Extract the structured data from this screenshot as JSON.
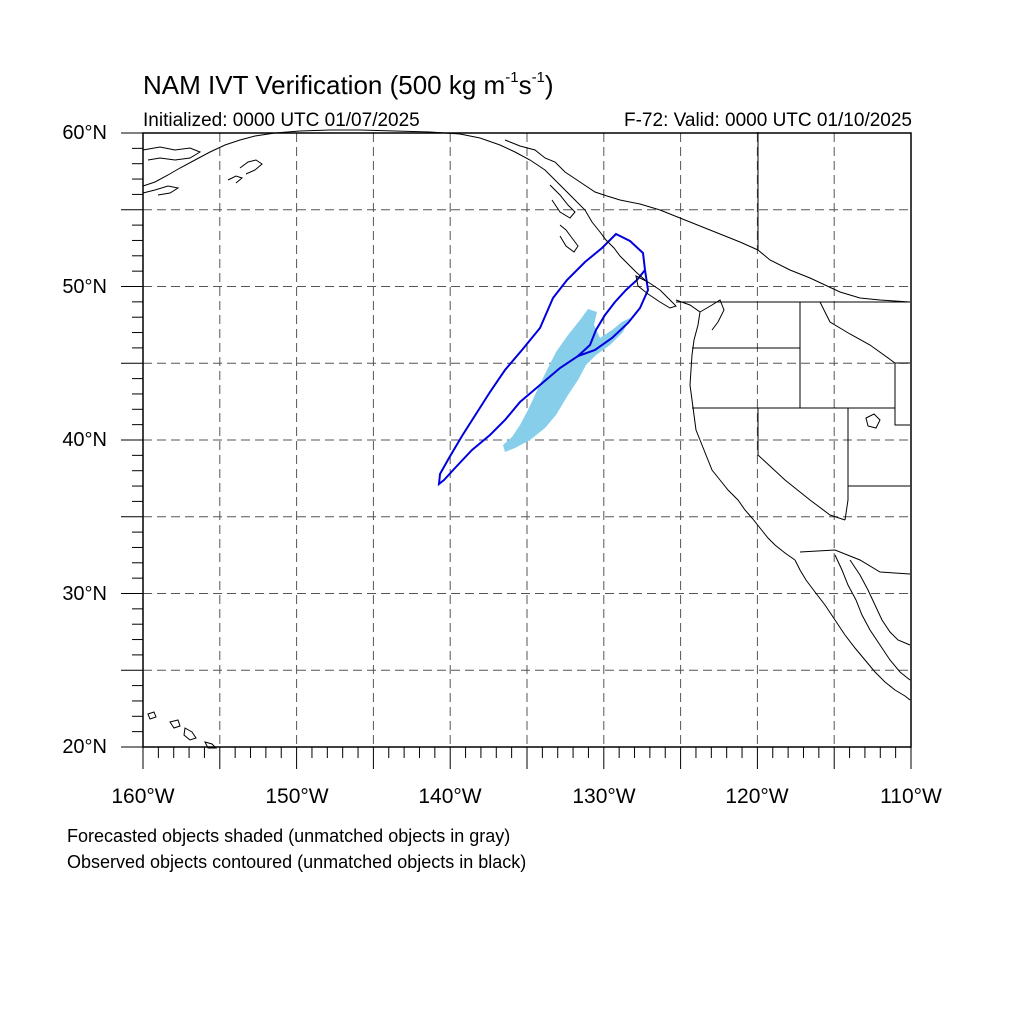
{
  "title": {
    "main": "NAM IVT Verification (500 kg m",
    "sup1": "-1",
    "mid": "s",
    "sup2": "-1",
    "close": ")"
  },
  "initialized": "Initialized: 0000 UTC 01/07/2025",
  "valid": "F-72: Valid: 0000 UTC 01/10/2025",
  "lat_labels": [
    "60°N",
    "50°N",
    "40°N",
    "30°N",
    "20°N"
  ],
  "lon_labels": [
    "160°W",
    "150°W",
    "140°W",
    "130°W",
    "120°W",
    "110°W"
  ],
  "notes": [
    "Forecasted objects shaded (unmatched objects in gray)",
    "Observed objects contoured (unmatched objects in black)"
  ],
  "colors": {
    "forecast_fill": "#87ceeb",
    "observed_contour": "#0000dd",
    "coast": "#000000",
    "grid": "#555555"
  },
  "map_extent": {
    "lon": [
      -160,
      -110
    ],
    "lat": [
      20,
      60
    ]
  },
  "grid_spacing_deg": 5
}
